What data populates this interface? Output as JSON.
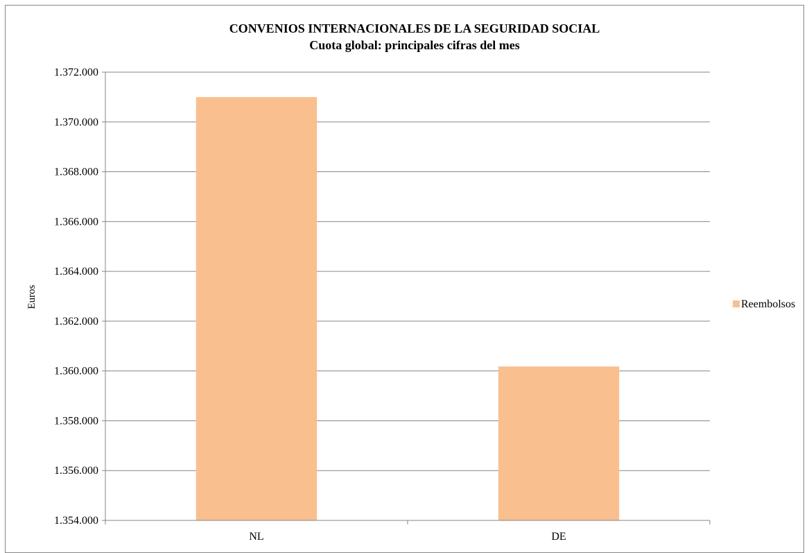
{
  "chart_data": {
    "type": "bar",
    "title": "CONVENIOS INTERNACIONALES DE LA SEGURIDAD SOCIAL",
    "subtitle": "Cuota global: principales cifras del mes",
    "xlabel": "",
    "ylabel": "Euros",
    "categories": [
      "NL",
      "DE"
    ],
    "series": [
      {
        "name": "Reembolsos",
        "values": [
          1371000,
          1360180
        ],
        "color": "#f9bf8f"
      }
    ],
    "ylim": [
      1354000,
      1372000
    ],
    "ytick_step": 2000,
    "ytick_labels": [
      "1.354.000",
      "1.356.000",
      "1.358.000",
      "1.360.000",
      "1.362.000",
      "1.364.000",
      "1.366.000",
      "1.368.000",
      "1.370.000",
      "1.372.000"
    ],
    "grid": true,
    "legend_position": "right",
    "colors": {
      "gridline": "#868686",
      "axis": "#868686"
    }
  }
}
